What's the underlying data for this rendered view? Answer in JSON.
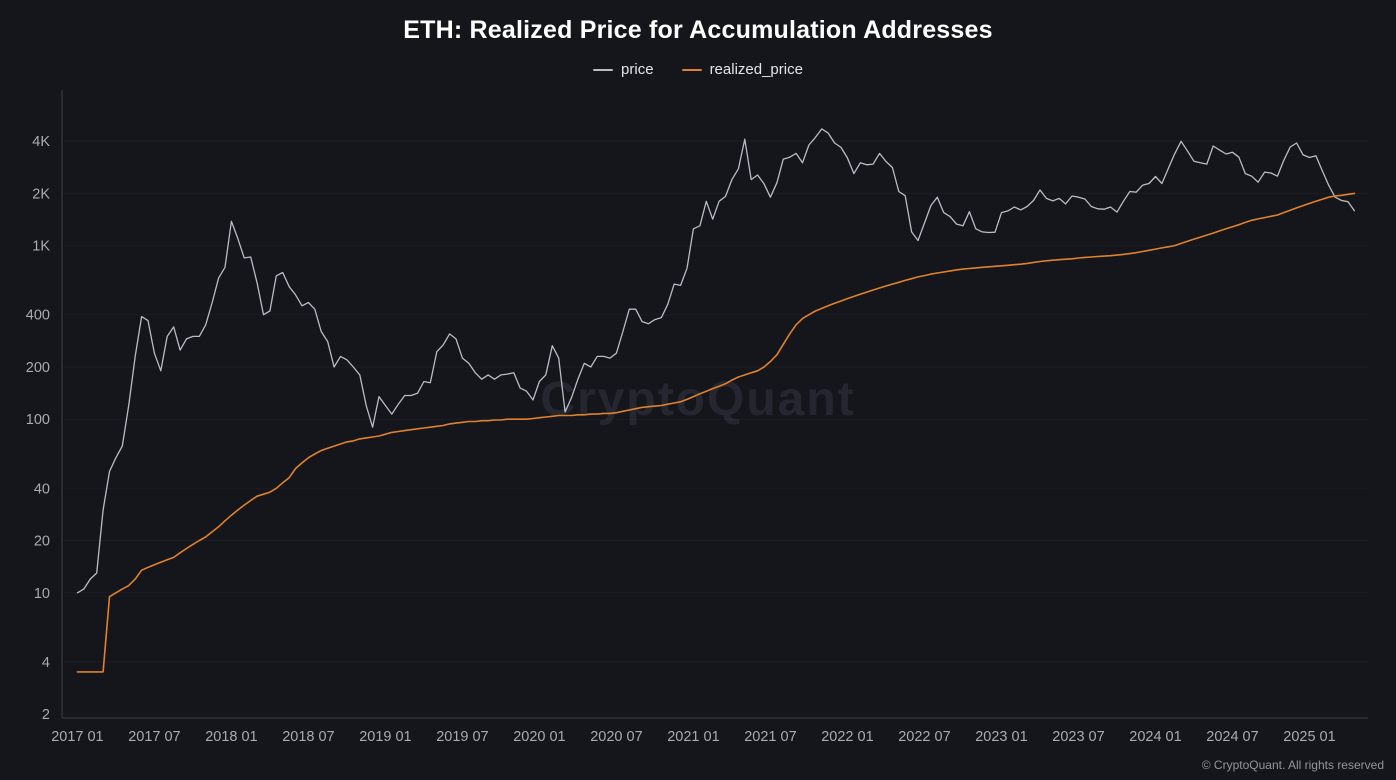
{
  "title": "ETH: Realized Price for Accumulation Addresses",
  "watermark": "CryptoQuant",
  "footer": "© CryptoQuant. All rights reserved",
  "colors": {
    "background": "#15151c",
    "price_line": "#b7bdc6",
    "realized_price_line": "#e0822c",
    "axis": "#3f4049",
    "tick_text": "#a9abb3"
  },
  "legend": [
    {
      "label": "price",
      "color": "#b7bdc6"
    },
    {
      "label": "realized_price",
      "color": "#e0822c"
    }
  ],
  "chart_data": {
    "type": "line",
    "title": "ETH: Realized Price for Accumulation Addresses",
    "xlabel": "",
    "ylabel": "",
    "y_scale": "log",
    "grid": false,
    "legend_position": "top-center",
    "x_start": 2017.0,
    "points_per_year": 24,
    "x_range": [
      2016.9,
      2025.38
    ],
    "y_range": [
      1.9,
      6900
    ],
    "x_ticks": [
      2017.0,
      2017.5,
      2018.0,
      2018.5,
      2019.0,
      2019.5,
      2020.0,
      2020.5,
      2021.0,
      2021.5,
      2022.0,
      2022.5,
      2023.0,
      2023.5,
      2024.0,
      2024.5,
      2025.0
    ],
    "x_tick_labels": [
      "2017 01",
      "2017 07",
      "2018 01",
      "2018 07",
      "2019 01",
      "2019 07",
      "2020 01",
      "2020 07",
      "2021 01",
      "2021 07",
      "2022 01",
      "2022 07",
      "2023 01",
      "2023 07",
      "2024 01",
      "2024 07",
      "2025 01"
    ],
    "y_ticks": [
      2,
      4,
      10,
      20,
      40,
      100,
      200,
      400,
      1000,
      2000,
      4000
    ],
    "y_tick_labels": [
      "2",
      "4",
      "10",
      "20",
      "40",
      "100",
      "200",
      "400",
      "1K",
      "2K",
      "4K"
    ],
    "series": [
      {
        "name": "price",
        "color": "#b7bdc6",
        "width": 1.3,
        "values": [
          10,
          10.5,
          12,
          13,
          30,
          50,
          60,
          70,
          120,
          230,
          390,
          370,
          240,
          190,
          300,
          340,
          250,
          290,
          300,
          300,
          350,
          470,
          650,
          750,
          1380,
          1100,
          850,
          860,
          610,
          400,
          420,
          670,
          700,
          580,
          520,
          450,
          470,
          430,
          320,
          280,
          200,
          230,
          220,
          200,
          180,
          120,
          90,
          135,
          120,
          107,
          122,
          137,
          137,
          141,
          165,
          162,
          245,
          268,
          310,
          290,
          225,
          210,
          185,
          170,
          180,
          170,
          180,
          182,
          185,
          151,
          145,
          129,
          165,
          180,
          265,
          225,
          110,
          133,
          170,
          210,
          200,
          230,
          230,
          225,
          240,
          320,
          430,
          430,
          365,
          355,
          375,
          385,
          460,
          600,
          590,
          740,
          1250,
          1300,
          1800,
          1420,
          1800,
          1920,
          2400,
          2770,
          4100,
          2400,
          2550,
          2270,
          1900,
          2300,
          3150,
          3230,
          3400,
          3000,
          3800,
          4200,
          4700,
          4450,
          3900,
          3680,
          3200,
          2600,
          3000,
          2920,
          2950,
          3400,
          3050,
          2820,
          2050,
          1940,
          1200,
          1070,
          1350,
          1700,
          1900,
          1550,
          1470,
          1330,
          1300,
          1570,
          1250,
          1200,
          1190,
          1195,
          1550,
          1585,
          1670,
          1605,
          1680,
          1820,
          2090,
          1870,
          1810,
          1870,
          1740,
          1930,
          1900,
          1855,
          1680,
          1630,
          1620,
          1670,
          1560,
          1800,
          2050,
          2030,
          2230,
          2280,
          2500,
          2280,
          2780,
          3380,
          3990,
          3500,
          3060,
          3000,
          2950,
          3750,
          3550,
          3370,
          3450,
          3230,
          2600,
          2510,
          2320,
          2650,
          2620,
          2510,
          3100,
          3700,
          3900,
          3330,
          3220,
          3290,
          2700,
          2230,
          1900,
          1820,
          1790,
          1590
        ]
      },
      {
        "name": "realized_price",
        "color": "#e0822c",
        "width": 1.6,
        "values": [
          3.5,
          3.5,
          3.5,
          3.5,
          3.5,
          9.5,
          10,
          10.5,
          11,
          12,
          13.5,
          14,
          14.5,
          15,
          15.5,
          16,
          17,
          18,
          19,
          20,
          21,
          22.5,
          24,
          26,
          28,
          30,
          32,
          34,
          36,
          37,
          38,
          40,
          43,
          46,
          52,
          56,
          60,
          63,
          66,
          68,
          70,
          72,
          74,
          75,
          77,
          78,
          79,
          80,
          82,
          84,
          85,
          86,
          87,
          88,
          89,
          90,
          91,
          92,
          94,
          95,
          96,
          97,
          97,
          98,
          98,
          99,
          99,
          100,
          100,
          100,
          100,
          101,
          102,
          103,
          104,
          105,
          105,
          105,
          106,
          106,
          107,
          107,
          108,
          108,
          109,
          111,
          113,
          115,
          117,
          118,
          119,
          120,
          122,
          124,
          126,
          130,
          135,
          140,
          145,
          150,
          155,
          160,
          168,
          175,
          180,
          185,
          190,
          200,
          215,
          235,
          270,
          310,
          350,
          380,
          400,
          420,
          435,
          450,
          465,
          480,
          495,
          510,
          525,
          540,
          555,
          570,
          585,
          600,
          615,
          630,
          645,
          660,
          672,
          685,
          695,
          705,
          715,
          725,
          732,
          738,
          744,
          750,
          755,
          760,
          765,
          770,
          776,
          782,
          790,
          800,
          810,
          818,
          824,
          830,
          835,
          840,
          848,
          855,
          860,
          865,
          870,
          875,
          882,
          890,
          900,
          910,
          925,
          940,
          955,
          970,
          985,
          1000,
          1030,
          1060,
          1090,
          1120,
          1150,
          1180,
          1215,
          1250,
          1285,
          1320,
          1360,
          1400,
          1425,
          1450,
          1475,
          1500,
          1550,
          1600,
          1650,
          1700,
          1750,
          1800,
          1850,
          1900,
          1930,
          1950,
          1975,
          2000
        ]
      }
    ]
  }
}
